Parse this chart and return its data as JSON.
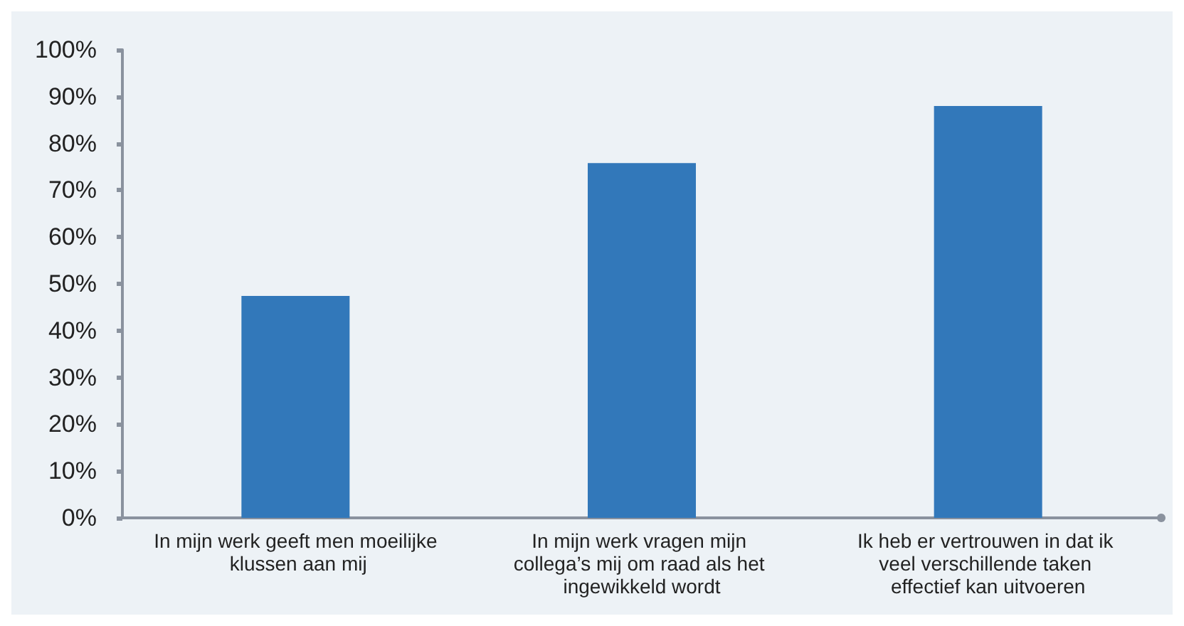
{
  "chart_data": {
    "type": "bar",
    "categories": [
      "In mijn werk geeft men moeilijke klussen aan mij",
      "In mijn werk vragen mijn collega’s mij om raad als het ingewikkeld wordt",
      "Ik heb er vertrouwen in dat ik veel verschillende taken effectief kan uitvoeren"
    ],
    "values": [
      47.4,
      75.8,
      88
    ],
    "color": "#3278ba",
    "ylim": [
      0,
      100
    ],
    "yticks": [
      {
        "value": 0,
        "label": "0%"
      },
      {
        "value": 10,
        "label": "10%"
      },
      {
        "value": 20,
        "label": "20%"
      },
      {
        "value": 30,
        "label": "30%"
      },
      {
        "value": 40,
        "label": "40%"
      },
      {
        "value": 50,
        "label": "50%"
      },
      {
        "value": 60,
        "label": "60%"
      },
      {
        "value": 70,
        "label": "70%"
      },
      {
        "value": 80,
        "label": "80%"
      },
      {
        "value": 90,
        "label": "90%"
      },
      {
        "value": 100,
        "label": "100%"
      }
    ],
    "grid": false
  }
}
